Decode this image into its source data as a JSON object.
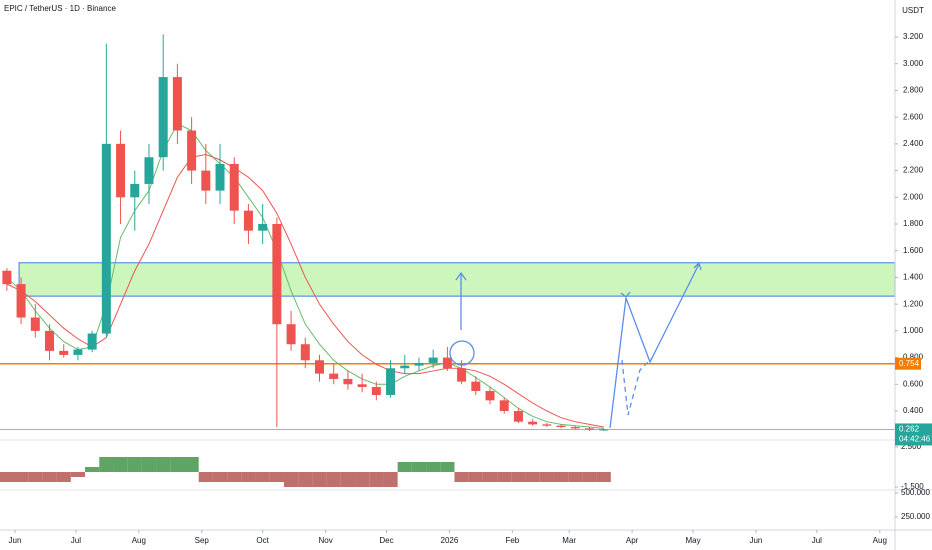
{
  "chart_data": {
    "type": "candlestick",
    "title": "EPIC / TetherUS · 1D · Binance",
    "currency": "USDT",
    "xlim": [
      -7.39,
      433.5
    ],
    "xticks": [
      {
        "value": 0,
        "label": "Jun"
      },
      {
        "value": 30,
        "label": "Jul"
      },
      {
        "value": 61,
        "label": "Aug"
      },
      {
        "value": 92,
        "label": "Sep"
      },
      {
        "value": 122,
        "label": "Oct"
      },
      {
        "value": 153,
        "label": "Nov"
      },
      {
        "value": 183,
        "label": "Dec"
      },
      {
        "value": 214,
        "label": "2026"
      },
      {
        "value": 245,
        "label": "Feb"
      },
      {
        "value": 273,
        "label": "Mar"
      },
      {
        "value": 304,
        "label": "Apr"
      },
      {
        "value": 334,
        "label": "May"
      },
      {
        "value": 365,
        "label": "Jun"
      },
      {
        "value": 395,
        "label": "Jul"
      },
      {
        "value": 426,
        "label": "Aug"
      }
    ],
    "ylim": [
      0.183,
      3.477
    ],
    "yticks": [
      {
        "value": 0.4,
        "label": "0.400"
      },
      {
        "value": 0.6,
        "label": "0.600"
      },
      {
        "value": 0.8,
        "label": "0.800"
      },
      {
        "value": 1.0,
        "label": "1.000"
      },
      {
        "value": 1.2,
        "label": "1.200"
      },
      {
        "value": 1.4,
        "label": "1.400"
      },
      {
        "value": 1.6,
        "label": "1.600"
      },
      {
        "value": 1.8,
        "label": "1.800"
      },
      {
        "value": 2.0,
        "label": "2.000"
      },
      {
        "value": 2.2,
        "label": "2.200"
      },
      {
        "value": 2.4,
        "label": "2.400"
      },
      {
        "value": 2.6,
        "label": "2.600"
      },
      {
        "value": 2.8,
        "label": "2.800"
      },
      {
        "value": 3.0,
        "label": "3.000"
      },
      {
        "value": 3.2,
        "label": "3.200"
      }
    ],
    "up_color": "#26a69a",
    "down_color": "#ef5350",
    "x": [
      -4,
      3,
      10,
      17,
      24,
      31,
      38,
      45,
      52,
      59,
      66,
      73,
      80,
      87,
      94,
      101,
      108,
      115,
      122,
      129,
      136,
      143,
      150,
      157,
      164,
      171,
      178,
      185,
      192,
      199,
      206,
      213,
      220,
      227,
      234,
      241,
      248,
      255,
      262,
      269,
      276,
      283,
      290
    ],
    "open": [
      1.45,
      1.35,
      1.1,
      1.0,
      0.85,
      0.82,
      0.86,
      0.98,
      2.4,
      2.0,
      2.1,
      2.3,
      2.9,
      2.5,
      2.2,
      2.05,
      2.25,
      1.9,
      1.75,
      1.8,
      1.05,
      0.9,
      0.78,
      0.68,
      0.64,
      0.6,
      0.58,
      0.52,
      0.72,
      0.74,
      0.76,
      0.8,
      0.72,
      0.62,
      0.55,
      0.48,
      0.4,
      0.32,
      0.3,
      0.29,
      0.28,
      0.27,
      0.26
    ],
    "high": [
      1.47,
      1.4,
      1.2,
      1.05,
      0.9,
      0.88,
      1.0,
      3.15,
      2.5,
      2.2,
      2.4,
      3.22,
      3.0,
      2.6,
      2.4,
      2.4,
      2.3,
      1.95,
      1.95,
      1.85,
      1.15,
      0.95,
      0.82,
      0.75,
      0.7,
      0.68,
      0.62,
      0.78,
      0.82,
      0.8,
      0.86,
      0.88,
      0.78,
      0.66,
      0.58,
      0.5,
      0.42,
      0.34,
      0.31,
      0.3,
      0.29,
      0.28,
      0.27
    ],
    "low": [
      1.3,
      1.05,
      0.95,
      0.78,
      0.8,
      0.78,
      0.84,
      0.95,
      1.8,
      1.75,
      1.95,
      2.2,
      2.4,
      2.1,
      1.95,
      1.95,
      1.8,
      1.65,
      1.65,
      0.28,
      0.85,
      0.72,
      0.62,
      0.6,
      0.56,
      0.54,
      0.48,
      0.5,
      0.68,
      0.7,
      0.72,
      0.7,
      0.6,
      0.52,
      0.45,
      0.38,
      0.31,
      0.29,
      0.28,
      0.27,
      0.26,
      0.25,
      0.25
    ],
    "close": [
      1.35,
      1.1,
      1.0,
      0.85,
      0.82,
      0.86,
      0.98,
      2.4,
      2.0,
      2.1,
      2.3,
      2.9,
      2.5,
      2.2,
      2.05,
      2.25,
      1.9,
      1.75,
      1.8,
      1.05,
      0.9,
      0.78,
      0.68,
      0.64,
      0.6,
      0.58,
      0.52,
      0.72,
      0.74,
      0.76,
      0.8,
      0.72,
      0.62,
      0.55,
      0.48,
      0.4,
      0.32,
      0.3,
      0.29,
      0.28,
      0.27,
      0.26,
      0.262
    ],
    "series": [
      {
        "color": "#66bb6a",
        "values": [
          1.4,
          1.3,
          1.15,
          1.02,
          0.92,
          0.86,
          0.88,
          1.2,
          1.7,
          1.9,
          2.05,
          2.35,
          2.55,
          2.5,
          2.35,
          2.25,
          2.15,
          2.0,
          1.85,
          1.6,
          1.3,
          1.05,
          0.9,
          0.78,
          0.7,
          0.64,
          0.6,
          0.6,
          0.66,
          0.7,
          0.74,
          0.76,
          0.72,
          0.65,
          0.58,
          0.5,
          0.42,
          0.36,
          0.32,
          0.3,
          0.29,
          0.28,
          0.27
        ]
      },
      {
        "color": "#ef5350",
        "values": [
          1.35,
          1.3,
          1.22,
          1.12,
          1.02,
          0.94,
          0.88,
          0.95,
          1.2,
          1.45,
          1.65,
          1.9,
          2.15,
          2.3,
          2.32,
          2.28,
          2.22,
          2.15,
          2.05,
          1.88,
          1.65,
          1.4,
          1.2,
          1.05,
          0.92,
          0.82,
          0.75,
          0.7,
          0.68,
          0.68,
          0.7,
          0.72,
          0.72,
          0.7,
          0.66,
          0.6,
          0.53,
          0.46,
          0.4,
          0.35,
          0.32,
          0.3,
          0.28
        ]
      }
    ],
    "zone": [
      1.26,
      1.51
    ],
    "zone_start": 2,
    "zone_color": "#b6f2a0",
    "level": 0.754,
    "level_color": "#f57c00",
    "last_price": 0.262,
    "countdown": "04:42:46",
    "oscillator": {
      "ylim": [
        -1.8,
        3.2
      ],
      "yticks": [
        {
          "value": 2.5,
          "label": "2.500"
        },
        {
          "value": -1.5,
          "label": "-1.500"
        }
      ],
      "values": [
        -1,
        -1,
        -1,
        -1,
        -1,
        -0.5,
        0.5,
        1.5,
        1.5,
        1.5,
        1.5,
        1.5,
        1.5,
        1.5,
        -1,
        -1,
        -1,
        -1,
        -1,
        -1,
        -1.5,
        -1.5,
        -1.5,
        -1.5,
        -1.5,
        -1.5,
        -1.5,
        -1.5,
        1,
        1,
        1,
        1,
        -1,
        -1,
        -1,
        -1,
        -1,
        -1,
        -1,
        -1,
        -1,
        -1,
        -1
      ]
    },
    "lower_pane": {
      "ylim": [
        -42,
        531
      ],
      "yticks": [
        {
          "value": 500,
          "label": "500.000"
        },
        {
          "value": 250,
          "label": "250.000"
        }
      ]
    }
  }
}
